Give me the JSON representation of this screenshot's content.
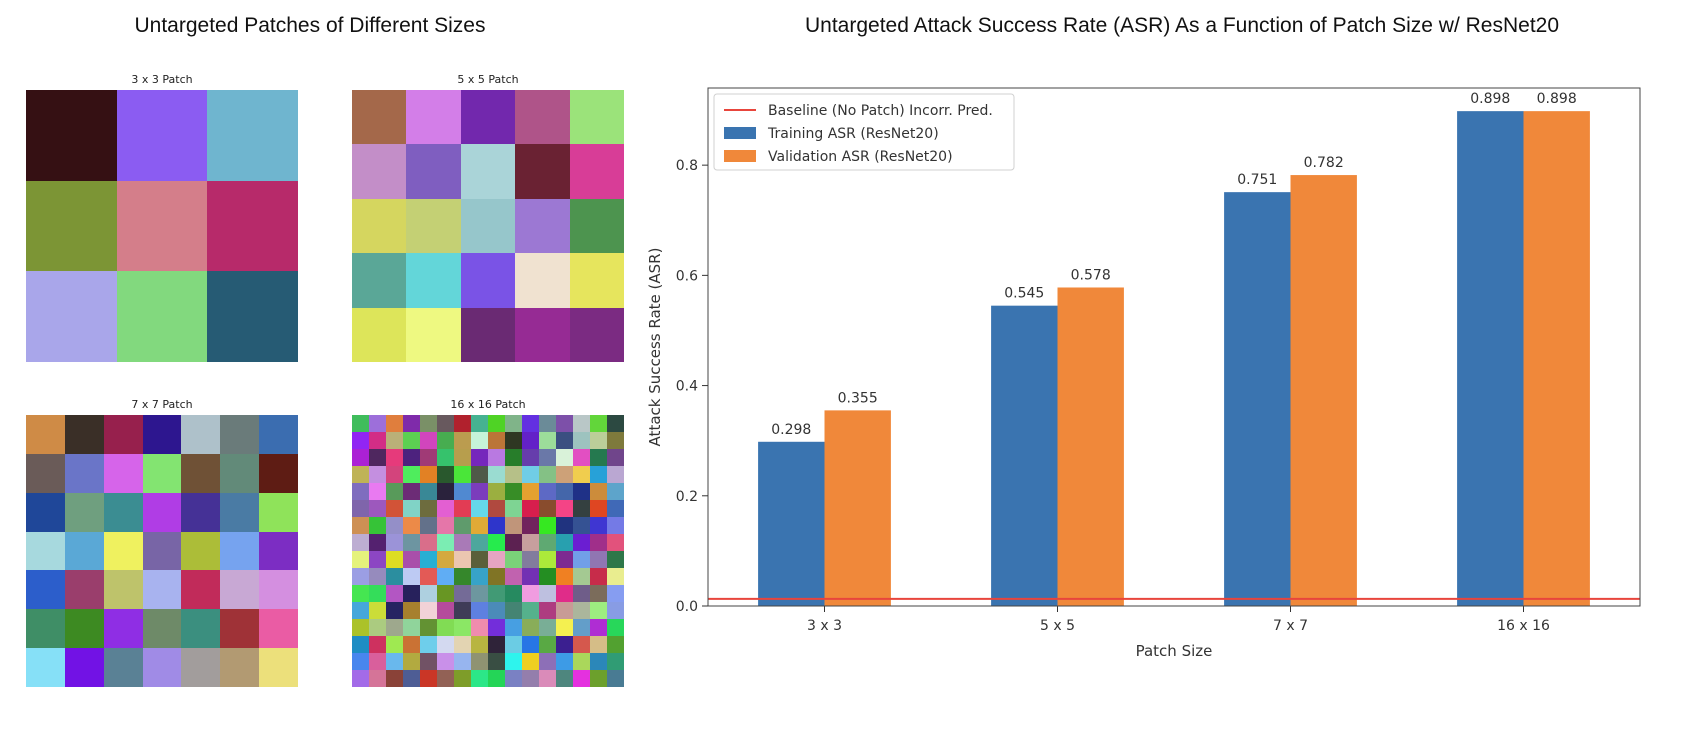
{
  "left_panel": {
    "title": "Untargeted Patches of Different Sizes",
    "patches": [
      {
        "label": "3 x 3 Patch",
        "size": 3,
        "colors": [
          "#351013",
          "#8b5cf2",
          "#6fb5cf",
          "#7c9535",
          "#d47e8a",
          "#b72a6a",
          "#a9a6ea",
          "#82d97e",
          "#265b74"
        ]
      },
      {
        "label": "5 x 5 Patch",
        "size": 5,
        "colors": [
          "#a4684a",
          "#d37ee8",
          "#7228ad",
          "#af5489",
          "#9be37a",
          "#c38ec8",
          "#7f5ec0",
          "#aad4d8",
          "#6a2233",
          "#d83d97",
          "#d5d65f",
          "#c4d074",
          "#96c6cb",
          "#9c78d3",
          "#4d944f",
          "#5aa797",
          "#63d6d9",
          "#7a53e6",
          "#f0e2d0",
          "#e6e55d",
          "#dde55a",
          "#eef981",
          "#6a2a73",
          "#962b94",
          "#7b2b82"
        ]
      },
      {
        "label": "7 x 7 Patch",
        "size": 7,
        "colors": [
          "#cf8b46",
          "#3a2f27",
          "#97204d",
          "#2d168f",
          "#aec1ca",
          "#6a7b7a",
          "#3b6db0",
          "#6a5b58",
          "#6a75c8",
          "#d664ea",
          "#83e471",
          "#6f5136",
          "#628a79",
          "#5e1c14",
          "#1f4799",
          "#6f9f7f",
          "#3b8d92",
          "#b03de5",
          "#453196",
          "#4a7ba4",
          "#8fe35a",
          "#a7d9de",
          "#5aa8d6",
          "#eff15f",
          "#7865a6",
          "#acbd38",
          "#76a3ef",
          "#7c2dc3",
          "#2c5ecb",
          "#9a3e6c",
          "#bec36b",
          "#a8b3ef",
          "#c12b5a",
          "#c8a8d4",
          "#d48fe0",
          "#3f8e66",
          "#3d8a22",
          "#8f2ee4",
          "#6e8a68",
          "#3b8f7f",
          "#9f3237",
          "#ea5ca4",
          "#86e0f7",
          "#7212e5",
          "#5a8195",
          "#a08be6",
          "#a29d9c",
          "#b29a72",
          "#ece07b"
        ]
      },
      {
        "label": "16 x 16 Patch",
        "size": 16
      }
    ]
  },
  "chart_data": {
    "type": "bar",
    "title": "Untargeted Attack Success Rate (ASR) As a Function of Patch Size w/ ResNet20",
    "xlabel": "Patch Size",
    "ylabel": "Attack Success Rate (ASR)",
    "categories": [
      "3 x 3",
      "5 x 5",
      "7 x 7",
      "16 x 16"
    ],
    "series": [
      {
        "name": "Training ASR (ResNet20)",
        "color": "#3a74b0",
        "values": [
          0.298,
          0.545,
          0.751,
          0.898
        ],
        "labels": [
          "0.298",
          "0.545",
          "0.751",
          "0.898"
        ]
      },
      {
        "name": "Validation ASR (ResNet20)",
        "color": "#f0883a",
        "values": [
          0.355,
          0.578,
          0.782,
          0.898
        ],
        "labels": [
          "0.355",
          "0.578",
          "0.782",
          "0.898"
        ]
      }
    ],
    "baseline": {
      "name": "Baseline (No Patch) Incorr. Pred.",
      "value": 0.013,
      "color": "#e8453c"
    },
    "ylim": [
      0,
      0.94
    ],
    "yticks": [
      0.0,
      0.2,
      0.4,
      0.6,
      0.8
    ],
    "ytick_labels": [
      "0.0",
      "0.2",
      "0.4",
      "0.6",
      "0.8"
    ],
    "grid": false,
    "legend_position": "top-left"
  }
}
